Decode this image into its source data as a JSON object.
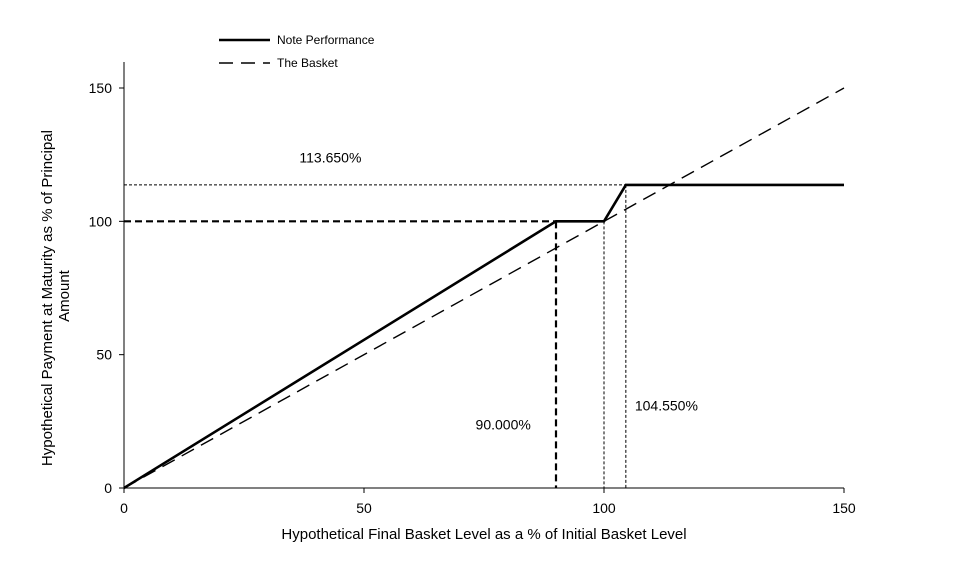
{
  "chart_data": {
    "type": "line",
    "xlabel": "Hypothetical Final Basket Level as a % of Initial Basket Level",
    "ylabel_lines": [
      "Hypothetical Payment at Maturity as % of Principal",
      "Amount"
    ],
    "xlim": [
      0,
      150
    ],
    "ylim": [
      0,
      150
    ],
    "x_ticks": [
      0,
      50,
      100,
      150
    ],
    "y_ticks": [
      0,
      50,
      100,
      150
    ],
    "grid": false,
    "legend_position": "top-left",
    "series": [
      {
        "name": "Note Performance",
        "style": "solid",
        "color": "#000000",
        "points": [
          [
            0,
            0
          ],
          [
            90,
            100
          ],
          [
            100,
            100
          ],
          [
            104.55,
            113.65
          ],
          [
            150,
            113.65
          ]
        ]
      },
      {
        "name": "The Basket",
        "style": "dashed",
        "color": "#000000",
        "points": [
          [
            0,
            0
          ],
          [
            150,
            150
          ]
        ]
      }
    ],
    "reference_lines": [
      {
        "style": "thick-dash",
        "points": [
          [
            0,
            100
          ],
          [
            90,
            100
          ]
        ]
      },
      {
        "style": "thick-dash",
        "points": [
          [
            90,
            100
          ],
          [
            90,
            0
          ]
        ]
      },
      {
        "style": "fine-dash",
        "points": [
          [
            100,
            100
          ],
          [
            100,
            0
          ]
        ]
      },
      {
        "style": "fine-dash",
        "points": [
          [
            104.55,
            113.65
          ],
          [
            104.55,
            0
          ]
        ]
      },
      {
        "style": "fine-dash",
        "points": [
          [
            0,
            113.65
          ],
          [
            104.55,
            113.65
          ]
        ]
      }
    ],
    "annotations": [
      {
        "text": "113.650%",
        "x": 43,
        "y": 122
      },
      {
        "text": "90.000%",
        "x": 79,
        "y": 22
      },
      {
        "text": "104.550%",
        "x": 113,
        "y": 29
      }
    ]
  }
}
